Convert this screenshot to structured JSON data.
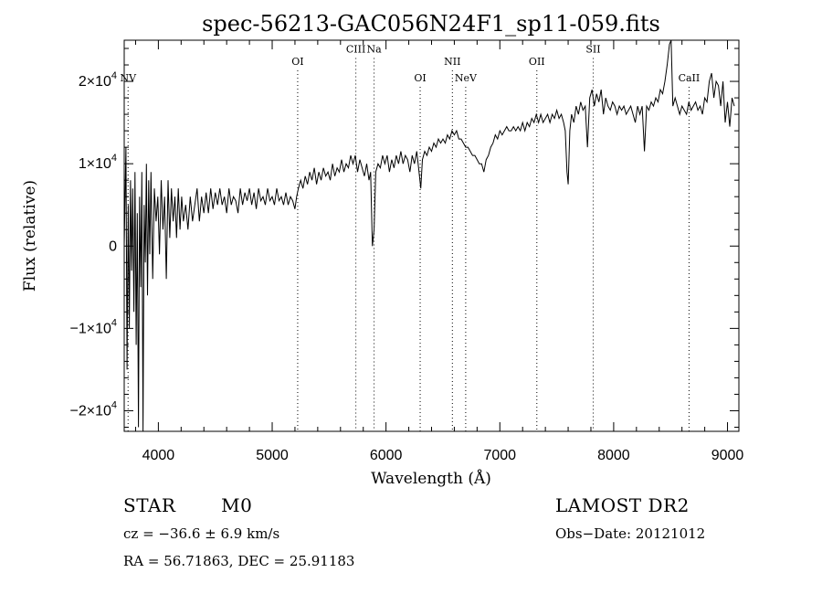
{
  "chart_data": {
    "type": "line",
    "title": "spec-56213-GAC056N24F1_sp11-059.fits",
    "xlabel": "Wavelength (Å)",
    "ylabel": "Flux (relative)",
    "xlim": [
      3700,
      9100
    ],
    "ylim": [
      -22500,
      25000
    ],
    "x_ticks": [
      {
        "value": 4000,
        "label": "4000"
      },
      {
        "value": 5000,
        "label": "5000"
      },
      {
        "value": 6000,
        "label": "6000"
      },
      {
        "value": 7000,
        "label": "7000"
      },
      {
        "value": 8000,
        "label": "8000"
      },
      {
        "value": 9000,
        "label": "9000"
      }
    ],
    "y_ticks": [
      {
        "value": -20000,
        "mant": "−2×10",
        "exp": "4"
      },
      {
        "value": -10000,
        "mant": "−1×10",
        "exp": "4"
      },
      {
        "value": 0,
        "mant": "0",
        "exp": ""
      },
      {
        "value": 10000,
        "mant": "1×10",
        "exp": "4"
      },
      {
        "value": 20000,
        "mant": "2×10",
        "exp": "4"
      }
    ],
    "line_markers": [
      {
        "label": "NV",
        "x": 3734,
        "label_y": 20000
      },
      {
        "label": "OI",
        "x": 5224,
        "label_y": 22000
      },
      {
        "label": "CIII",
        "x": 5735,
        "label_y": 23500
      },
      {
        "label": "Na",
        "x": 5895,
        "label_y": 23500
      },
      {
        "label": "OI",
        "x": 6300,
        "label_y": 20000
      },
      {
        "label": "NII",
        "x": 6583,
        "label_y": 22000
      },
      {
        "label": "NeV",
        "x": 6700,
        "label_y": 20000
      },
      {
        "label": "OII",
        "x": 7325,
        "label_y": 22000
      },
      {
        "label": "SII",
        "x": 7820,
        "label_y": 23500
      },
      {
        "label": "CaII",
        "x": 8662,
        "label_y": 20000
      }
    ],
    "series": [
      {
        "points": [
          [
            3700,
            0
          ],
          [
            3715,
            12000
          ],
          [
            3725,
            -15000
          ],
          [
            3735,
            5000
          ],
          [
            3745,
            -10000
          ],
          [
            3755,
            8000
          ],
          [
            3765,
            -3000
          ],
          [
            3775,
            7000
          ],
          [
            3785,
            -8000
          ],
          [
            3795,
            9000
          ],
          [
            3805,
            -12000
          ],
          [
            3815,
            4000
          ],
          [
            3825,
            -22000
          ],
          [
            3835,
            6000
          ],
          [
            3845,
            -5000
          ],
          [
            3855,
            9000
          ],
          [
            3865,
            -22500
          ],
          [
            3875,
            5000
          ],
          [
            3885,
            -2000
          ],
          [
            3895,
            10000
          ],
          [
            3905,
            -6000
          ],
          [
            3915,
            8000
          ],
          [
            3925,
            -1000
          ],
          [
            3935,
            9000
          ],
          [
            3950,
            -4000
          ],
          [
            3965,
            7000
          ],
          [
            3980,
            3000
          ],
          [
            3995,
            6000
          ],
          [
            4010,
            -1000
          ],
          [
            4025,
            8000
          ],
          [
            4040,
            2000
          ],
          [
            4055,
            6000
          ],
          [
            4070,
            -4000
          ],
          [
            4085,
            8000
          ],
          [
            4100,
            1000
          ],
          [
            4115,
            7000
          ],
          [
            4130,
            3000
          ],
          [
            4145,
            6000
          ],
          [
            4160,
            1000
          ],
          [
            4175,
            7000
          ],
          [
            4190,
            2000
          ],
          [
            4205,
            6000
          ],
          [
            4220,
            3000
          ],
          [
            4240,
            5000
          ],
          [
            4260,
            2000
          ],
          [
            4280,
            6000
          ],
          [
            4300,
            3000
          ],
          [
            4320,
            5000
          ],
          [
            4340,
            7000
          ],
          [
            4360,
            3000
          ],
          [
            4380,
            6000
          ],
          [
            4400,
            4000
          ],
          [
            4420,
            6500
          ],
          [
            4440,
            4000
          ],
          [
            4460,
            7000
          ],
          [
            4480,
            4500
          ],
          [
            4500,
            6500
          ],
          [
            4520,
            5000
          ],
          [
            4540,
            7000
          ],
          [
            4560,
            5000
          ],
          [
            4580,
            6000
          ],
          [
            4600,
            4000
          ],
          [
            4620,
            7000
          ],
          [
            4640,
            5000
          ],
          [
            4660,
            6000
          ],
          [
            4680,
            5500
          ],
          [
            4700,
            4000
          ],
          [
            4720,
            7000
          ],
          [
            4740,
            5000
          ],
          [
            4760,
            6500
          ],
          [
            4780,
            5500
          ],
          [
            4800,
            7000
          ],
          [
            4820,
            5000
          ],
          [
            4840,
            6500
          ],
          [
            4860,
            4500
          ],
          [
            4880,
            7000
          ],
          [
            4900,
            5500
          ],
          [
            4920,
            6000
          ],
          [
            4940,
            5000
          ],
          [
            4960,
            7000
          ],
          [
            4980,
            5500
          ],
          [
            5000,
            6000
          ],
          [
            5020,
            5000
          ],
          [
            5040,
            7000
          ],
          [
            5060,
            5500
          ],
          [
            5080,
            6000
          ],
          [
            5100,
            5000
          ],
          [
            5120,
            6500
          ],
          [
            5140,
            5000
          ],
          [
            5160,
            6000
          ],
          [
            5180,
            5500
          ],
          [
            5200,
            4500
          ],
          [
            5215,
            6000
          ],
          [
            5230,
            7000
          ],
          [
            5250,
            8000
          ],
          [
            5270,
            7000
          ],
          [
            5290,
            8500
          ],
          [
            5310,
            7500
          ],
          [
            5330,
            9000
          ],
          [
            5350,
            8000
          ],
          [
            5370,
            9500
          ],
          [
            5390,
            7500
          ],
          [
            5410,
            9000
          ],
          [
            5430,
            8000
          ],
          [
            5450,
            9500
          ],
          [
            5470,
            8500
          ],
          [
            5490,
            9000
          ],
          [
            5510,
            8000
          ],
          [
            5530,
            10000
          ],
          [
            5550,
            8500
          ],
          [
            5570,
            9500
          ],
          [
            5590,
            9000
          ],
          [
            5610,
            10500
          ],
          [
            5630,
            9000
          ],
          [
            5650,
            10000
          ],
          [
            5670,
            9500
          ],
          [
            5690,
            11000
          ],
          [
            5710,
            10000
          ],
          [
            5730,
            11000
          ],
          [
            5750,
            9000
          ],
          [
            5770,
            10500
          ],
          [
            5790,
            9500
          ],
          [
            5810,
            8500
          ],
          [
            5830,
            10000
          ],
          [
            5850,
            8000
          ],
          [
            5865,
            9000
          ],
          [
            5880,
            0
          ],
          [
            5895,
            2000
          ],
          [
            5910,
            9000
          ],
          [
            5930,
            10000
          ],
          [
            5950,
            9500
          ],
          [
            5970,
            11000
          ],
          [
            5990,
            10000
          ],
          [
            6010,
            11000
          ],
          [
            6030,
            9000
          ],
          [
            6050,
            10500
          ],
          [
            6070,
            9500
          ],
          [
            6090,
            11000
          ],
          [
            6110,
            10000
          ],
          [
            6130,
            11500
          ],
          [
            6150,
            10000
          ],
          [
            6170,
            11000
          ],
          [
            6190,
            10500
          ],
          [
            6210,
            9000
          ],
          [
            6230,
            11000
          ],
          [
            6250,
            10000
          ],
          [
            6270,
            11500
          ],
          [
            6290,
            9000
          ],
          [
            6305,
            7000
          ],
          [
            6320,
            10500
          ],
          [
            6340,
            11500
          ],
          [
            6360,
            11000
          ],
          [
            6380,
            12000
          ],
          [
            6400,
            11500
          ],
          [
            6420,
            12500
          ],
          [
            6440,
            12000
          ],
          [
            6460,
            13000
          ],
          [
            6480,
            12500
          ],
          [
            6500,
            13000
          ],
          [
            6520,
            12500
          ],
          [
            6540,
            13500
          ],
          [
            6560,
            13000
          ],
          [
            6580,
            14000
          ],
          [
            6600,
            13500
          ],
          [
            6620,
            14000
          ],
          [
            6640,
            13000
          ],
          [
            6660,
            13000
          ],
          [
            6680,
            12500
          ],
          [
            6700,
            12000
          ],
          [
            6720,
            12000
          ],
          [
            6740,
            11500
          ],
          [
            6760,
            11000
          ],
          [
            6780,
            11000
          ],
          [
            6800,
            10500
          ],
          [
            6820,
            10000
          ],
          [
            6840,
            10000
          ],
          [
            6860,
            9000
          ],
          [
            6880,
            10500
          ],
          [
            6900,
            11000
          ],
          [
            6920,
            12000
          ],
          [
            6940,
            12500
          ],
          [
            6960,
            13500
          ],
          [
            6980,
            13000
          ],
          [
            7000,
            14000
          ],
          [
            7020,
            13500
          ],
          [
            7040,
            14000
          ],
          [
            7060,
            14500
          ],
          [
            7080,
            14000
          ],
          [
            7100,
            14000
          ],
          [
            7120,
            14500
          ],
          [
            7140,
            14000
          ],
          [
            7160,
            14500
          ],
          [
            7180,
            14000
          ],
          [
            7200,
            15000
          ],
          [
            7220,
            14000
          ],
          [
            7240,
            15000
          ],
          [
            7260,
            14500
          ],
          [
            7280,
            15500
          ],
          [
            7300,
            15000
          ],
          [
            7320,
            16000
          ],
          [
            7340,
            15000
          ],
          [
            7360,
            16000
          ],
          [
            7380,
            15000
          ],
          [
            7400,
            15500
          ],
          [
            7420,
            16000
          ],
          [
            7440,
            15000
          ],
          [
            7460,
            16000
          ],
          [
            7480,
            15500
          ],
          [
            7500,
            16500
          ],
          [
            7520,
            15500
          ],
          [
            7540,
            16000
          ],
          [
            7560,
            15000
          ],
          [
            7575,
            14000
          ],
          [
            7590,
            9000
          ],
          [
            7600,
            7500
          ],
          [
            7615,
            14000
          ],
          [
            7630,
            16000
          ],
          [
            7650,
            15000
          ],
          [
            7670,
            17000
          ],
          [
            7690,
            16000
          ],
          [
            7710,
            17500
          ],
          [
            7730,
            16500
          ],
          [
            7750,
            17000
          ],
          [
            7770,
            12000
          ],
          [
            7790,
            18000
          ],
          [
            7810,
            19000
          ],
          [
            7830,
            17000
          ],
          [
            7850,
            18500
          ],
          [
            7870,
            17500
          ],
          [
            7890,
            19000
          ],
          [
            7910,
            16000
          ],
          [
            7930,
            18000
          ],
          [
            7950,
            17000
          ],
          [
            7970,
            16500
          ],
          [
            7990,
            17500
          ],
          [
            8010,
            17000
          ],
          [
            8030,
            16000
          ],
          [
            8050,
            17000
          ],
          [
            8070,
            16500
          ],
          [
            8090,
            17000
          ],
          [
            8110,
            16000
          ],
          [
            8130,
            16500
          ],
          [
            8150,
            17000
          ],
          [
            8170,
            16000
          ],
          [
            8190,
            15000
          ],
          [
            8210,
            17000
          ],
          [
            8230,
            16000
          ],
          [
            8250,
            17000
          ],
          [
            8270,
            11500
          ],
          [
            8290,
            17000
          ],
          [
            8310,
            16500
          ],
          [
            8330,
            17500
          ],
          [
            8350,
            17000
          ],
          [
            8370,
            18000
          ],
          [
            8390,
            17500
          ],
          [
            8410,
            19000
          ],
          [
            8430,
            18500
          ],
          [
            8450,
            20000
          ],
          [
            8470,
            22000
          ],
          [
            8490,
            24500
          ],
          [
            8505,
            25000
          ],
          [
            8520,
            17000
          ],
          [
            8540,
            18000
          ],
          [
            8560,
            17000
          ],
          [
            8580,
            16000
          ],
          [
            8600,
            17000
          ],
          [
            8620,
            16500
          ],
          [
            8640,
            16000
          ],
          [
            8660,
            17500
          ],
          [
            8680,
            16500
          ],
          [
            8700,
            17000
          ],
          [
            8720,
            17500
          ],
          [
            8740,
            16500
          ],
          [
            8760,
            17000
          ],
          [
            8780,
            16000
          ],
          [
            8800,
            18000
          ],
          [
            8820,
            17500
          ],
          [
            8840,
            20000
          ],
          [
            8860,
            21000
          ],
          [
            8880,
            18000
          ],
          [
            8900,
            20000
          ],
          [
            8920,
            19500
          ],
          [
            8940,
            17000
          ],
          [
            8960,
            20000
          ],
          [
            8980,
            15000
          ],
          [
            9000,
            17500
          ],
          [
            9020,
            14500
          ],
          [
            9040,
            18000
          ],
          [
            9060,
            17000
          ]
        ]
      }
    ]
  },
  "info": {
    "object_class": "STAR",
    "subclass": "M0",
    "survey": "LAMOST DR2",
    "redshift": "cz = −36.6 ± 6.9 km/s",
    "obs_date": "Obs−Date: 20121012",
    "coords": "RA =  56.71863, DEC =  25.91183"
  }
}
